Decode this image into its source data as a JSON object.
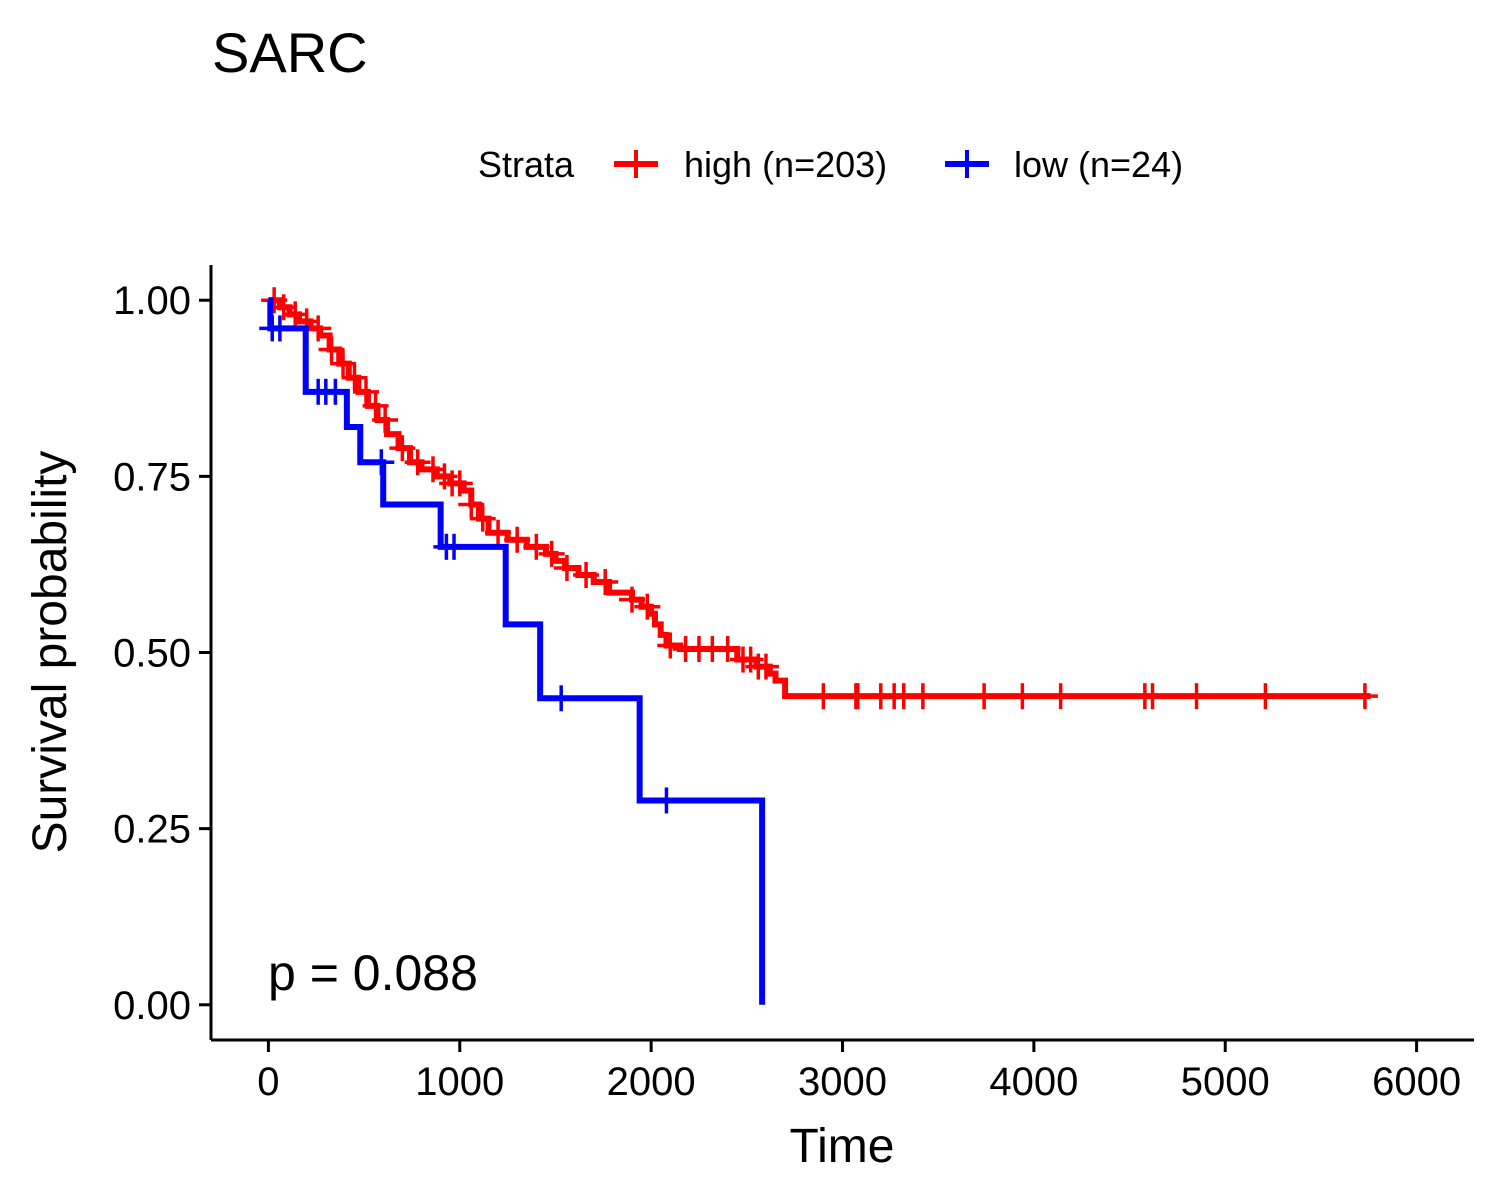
{
  "chart_data": {
    "type": "line",
    "title": "SARC",
    "xlabel": "Time",
    "ylabel": "Survival probability",
    "xlim": [
      -300,
      6300
    ],
    "ylim": [
      -0.05,
      1.05
    ],
    "x_ticks": [
      0,
      1000,
      2000,
      3000,
      4000,
      5000,
      6000
    ],
    "y_ticks": [
      0.0,
      0.25,
      0.5,
      0.75,
      1.0
    ],
    "y_tick_labels": [
      "0.00",
      "0.25",
      "0.50",
      "0.75",
      "1.00"
    ],
    "annotation": "p = 0.088",
    "legend": {
      "title": "Strata",
      "placement": "top"
    },
    "grid": false,
    "series": [
      {
        "name": "high (n=203)",
        "color": "#ff0000",
        "steps": [
          [
            0,
            1.0
          ],
          [
            60,
            0.99
          ],
          [
            110,
            0.98
          ],
          [
            160,
            0.97
          ],
          [
            220,
            0.96
          ],
          [
            270,
            0.95
          ],
          [
            320,
            0.93
          ],
          [
            370,
            0.91
          ],
          [
            420,
            0.89
          ],
          [
            470,
            0.87
          ],
          [
            520,
            0.85
          ],
          [
            570,
            0.83
          ],
          [
            620,
            0.81
          ],
          [
            680,
            0.79
          ],
          [
            740,
            0.77
          ],
          [
            800,
            0.76
          ],
          [
            880,
            0.75
          ],
          [
            950,
            0.74
          ],
          [
            1020,
            0.73
          ],
          [
            1060,
            0.71
          ],
          [
            1100,
            0.69
          ],
          [
            1150,
            0.67
          ],
          [
            1250,
            0.66
          ],
          [
            1350,
            0.65
          ],
          [
            1450,
            0.64
          ],
          [
            1500,
            0.63
          ],
          [
            1550,
            0.62
          ],
          [
            1620,
            0.61
          ],
          [
            1700,
            0.6
          ],
          [
            1780,
            0.585
          ],
          [
            1900,
            0.575
          ],
          [
            1950,
            0.565
          ],
          [
            2000,
            0.555
          ],
          [
            2020,
            0.54
          ],
          [
            2050,
            0.525
          ],
          [
            2080,
            0.51
          ],
          [
            2150,
            0.505
          ],
          [
            2450,
            0.49
          ],
          [
            2550,
            0.48
          ],
          [
            2620,
            0.47
          ],
          [
            2650,
            0.46
          ],
          [
            2700,
            0.438
          ],
          [
            5760,
            0.438
          ]
        ],
        "censor_x": [
          30,
          80,
          140,
          200,
          260,
          330,
          390,
          450,
          510,
          560,
          610,
          700,
          780,
          860,
          920,
          960,
          1000,
          1060,
          1120,
          1200,
          1300,
          1400,
          1480,
          1560,
          1660,
          1760,
          1900,
          1980,
          2100,
          2180,
          2250,
          2320,
          2400,
          2480,
          2520,
          2560,
          2600,
          2900,
          3070,
          3080,
          3200,
          3270,
          3320,
          3420,
          3740,
          3940,
          4140,
          4580,
          4620,
          4850,
          5210,
          5730
        ]
      },
      {
        "name": "low (n=24)",
        "color": "#0000ff",
        "steps": [
          [
            0,
            1.0
          ],
          [
            10,
            0.96
          ],
          [
            195,
            0.87
          ],
          [
            410,
            0.82
          ],
          [
            480,
            0.77
          ],
          [
            600,
            0.71
          ],
          [
            900,
            0.65
          ],
          [
            1240,
            0.54
          ],
          [
            1420,
            0.435
          ],
          [
            1940,
            0.29
          ],
          [
            2580,
            0.0
          ]
        ],
        "censor_x": [
          20,
          60,
          260,
          300,
          350,
          590,
          930,
          970,
          1530,
          2080
        ]
      }
    ]
  }
}
